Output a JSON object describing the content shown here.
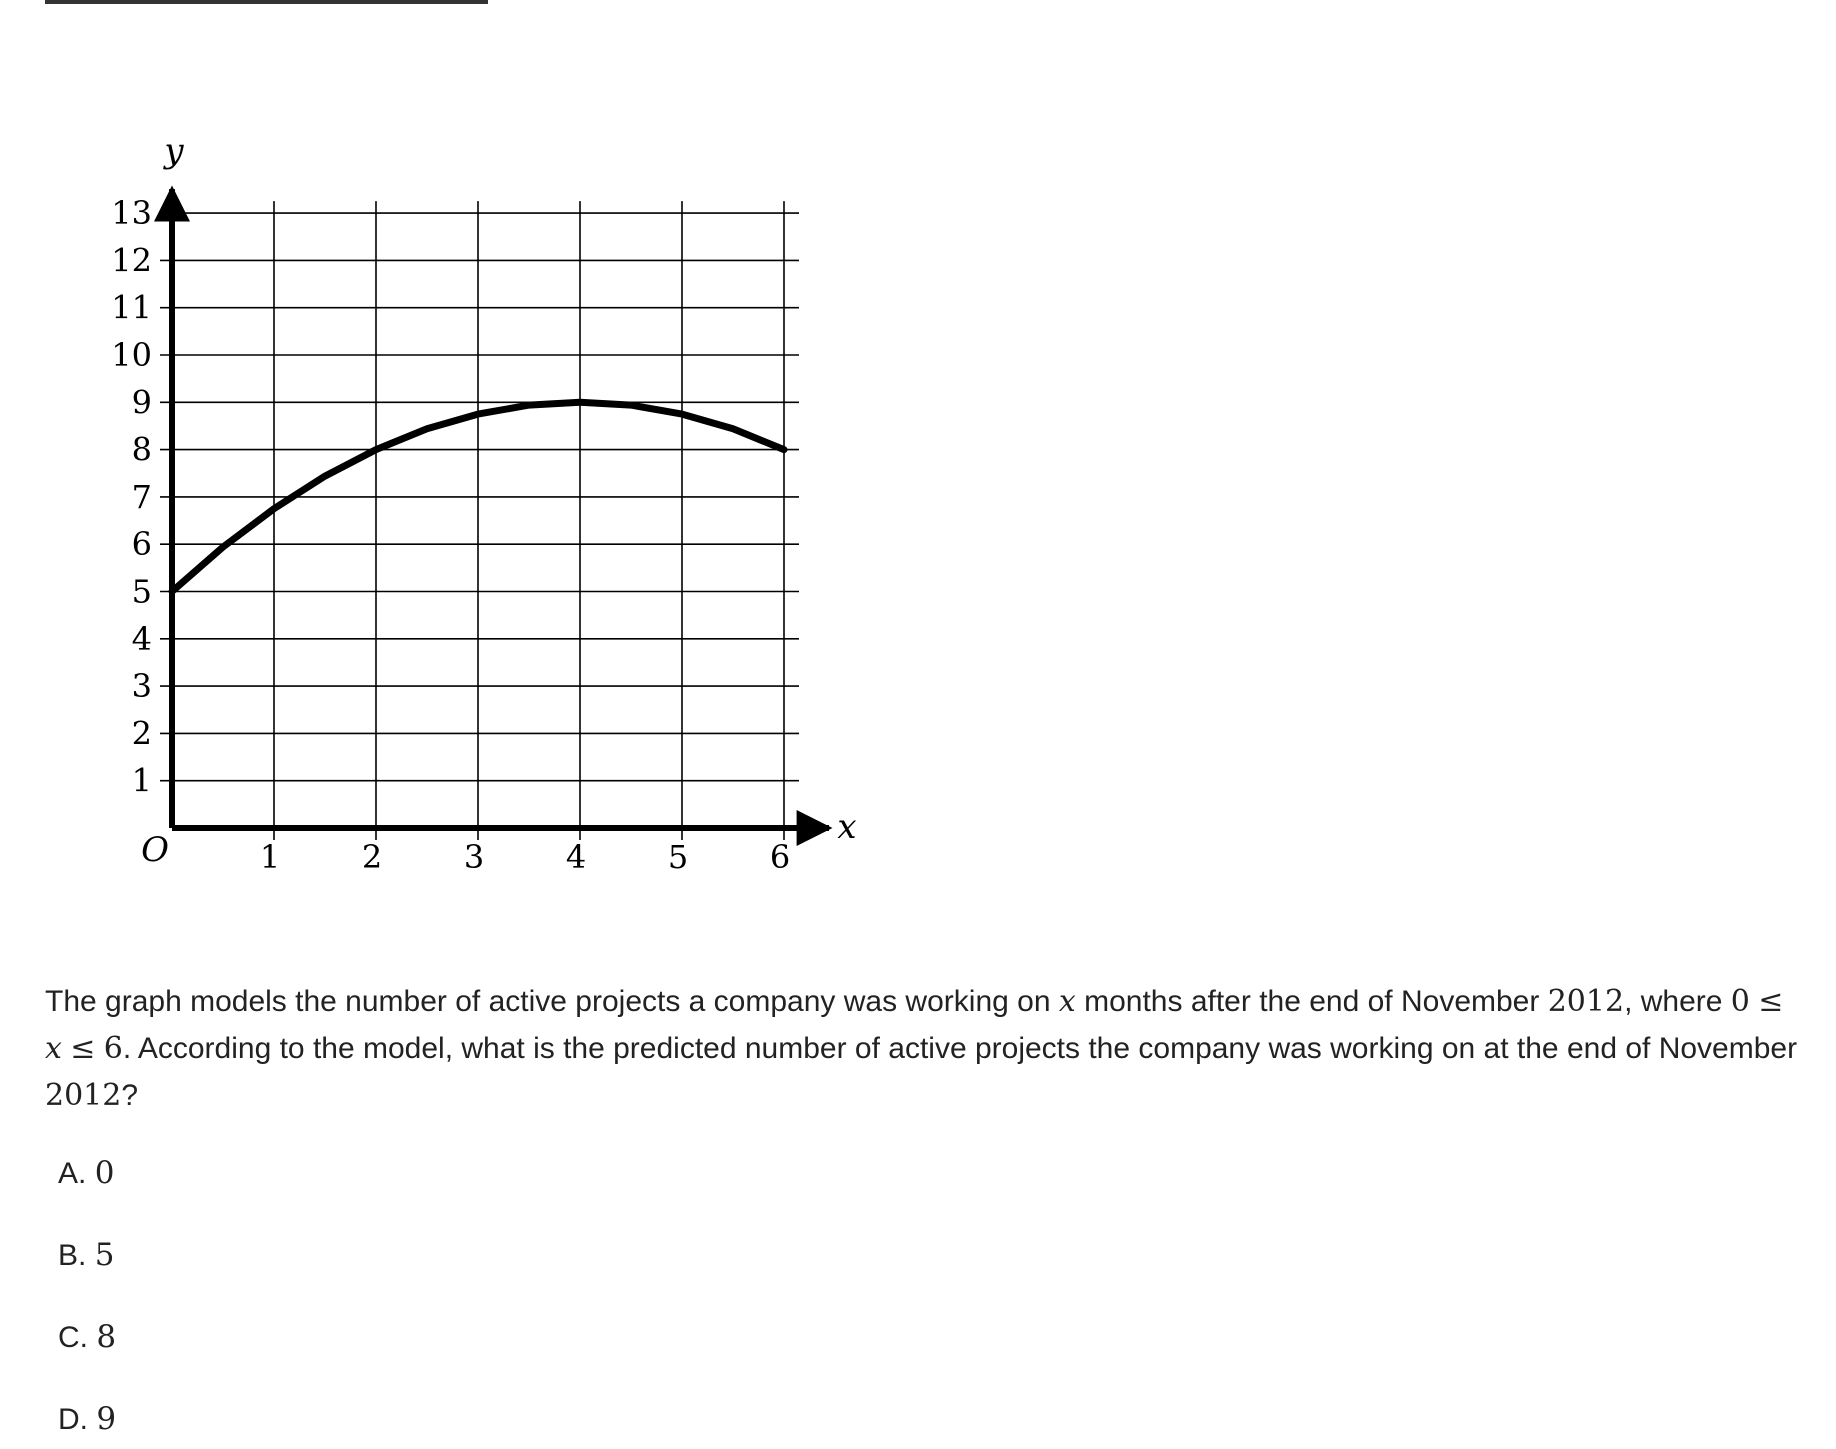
{
  "question": {
    "part1": "The graph models the number of active projects a company was working on ",
    "var_x": "x",
    "part2": " months after the end of November ",
    "year": "2012",
    "part3": ", where ",
    "ineq_lo": "0",
    "le": "≤",
    "ineq_var": "x",
    "ineq_hi": "6",
    "part4": ". According to the model, what is the predicted number of active projects the company was working on at the end of November ",
    "year2": "2012",
    "part5": "?"
  },
  "choices": [
    {
      "letter": "A. ",
      "value": "0"
    },
    {
      "letter": "B. ",
      "value": "5"
    },
    {
      "letter": "C. ",
      "value": "8"
    },
    {
      "letter": "D. ",
      "value": "9"
    }
  ],
  "chart_data": {
    "type": "line",
    "xlabel": "x",
    "ylabel": "y",
    "origin_label": "O",
    "xlim": [
      0,
      6
    ],
    "ylim": [
      0,
      13
    ],
    "x_ticks": [
      1,
      2,
      3,
      4,
      5,
      6
    ],
    "y_ticks": [
      1,
      2,
      3,
      4,
      5,
      6,
      7,
      8,
      9,
      10,
      11,
      12,
      13
    ],
    "grid": true,
    "series": [
      {
        "x": [
          0,
          0.5,
          1,
          1.5,
          2,
          2.5,
          3,
          3.5,
          4,
          4.5,
          5,
          5.5,
          6
        ],
        "y": [
          5,
          5.94,
          6.75,
          7.44,
          8,
          8.44,
          8.75,
          8.94,
          9,
          8.94,
          8.75,
          8.44,
          8
        ]
      }
    ]
  }
}
